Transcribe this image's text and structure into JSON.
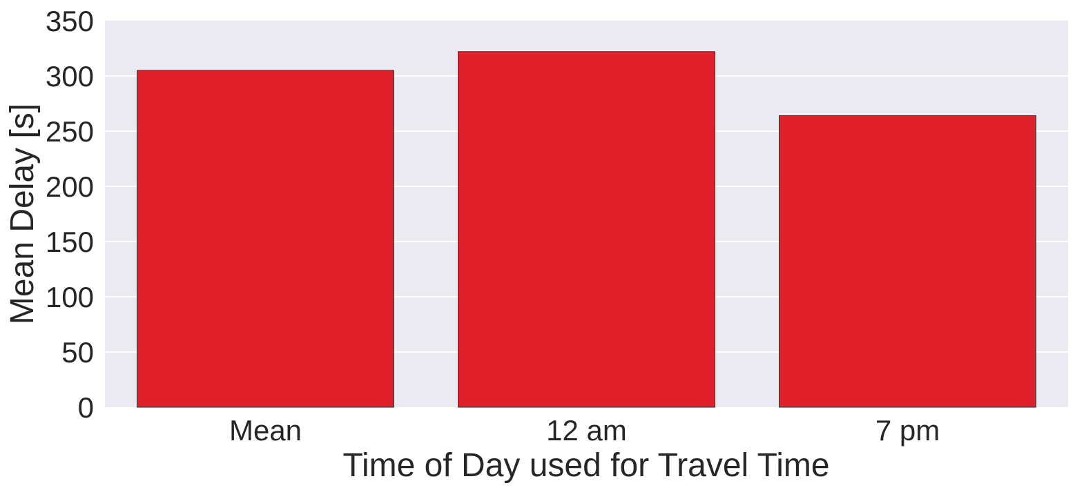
{
  "chart_data": {
    "type": "bar",
    "title": "",
    "xlabel": "Time of Day used for Travel Time",
    "ylabel": "Mean Delay [s]",
    "categories": [
      "Mean",
      "12 am",
      "7 pm"
    ],
    "values": [
      305,
      322,
      264
    ],
    "ylim": [
      0,
      350
    ],
    "yticks": [
      0,
      50,
      100,
      150,
      200,
      250,
      300,
      350
    ],
    "grid": true,
    "legend": "none",
    "colors": {
      "bar": "#e0202b",
      "bar_edge": "#333333",
      "plot_background": "#eaeaf2",
      "grid": "#ffffff",
      "text": "#262626"
    }
  }
}
